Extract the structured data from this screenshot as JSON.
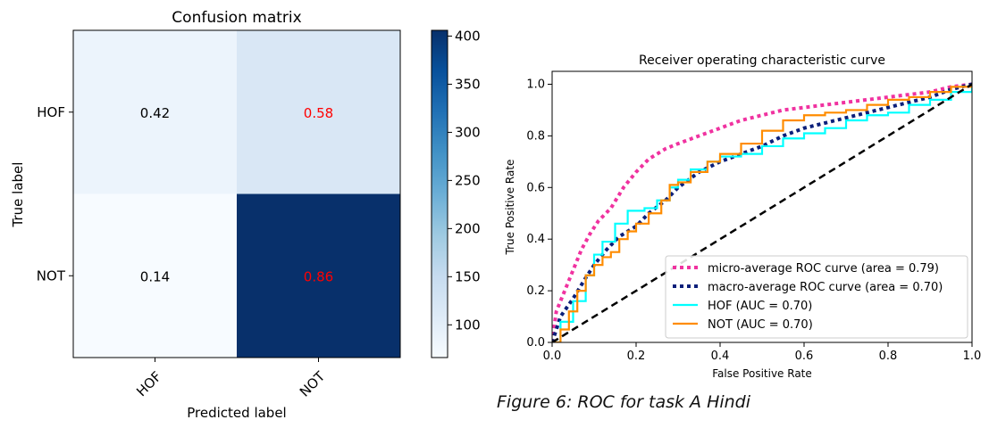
{
  "caption": "Figure 6: ROC for task A Hindi",
  "chart_data": [
    {
      "type": "heatmap",
      "title": "Confusion matrix",
      "xlabel": "Predicted label",
      "ylabel": "True label",
      "x_categories": [
        "HOF",
        "NOT"
      ],
      "y_categories": [
        "HOF",
        "NOT"
      ],
      "cells": [
        {
          "row": 0,
          "col": 0,
          "label": "0.42",
          "count": 84,
          "text_color": "#000000"
        },
        {
          "row": 0,
          "col": 1,
          "label": "0.58",
          "count": 118,
          "text_color": "#ff0000"
        },
        {
          "row": 1,
          "col": 0,
          "label": "0.14",
          "count": 66,
          "text_color": "#000000"
        },
        {
          "row": 1,
          "col": 1,
          "label": "0.86",
          "count": 406,
          "text_color": "#ff0000"
        }
      ],
      "colorbar": {
        "ticks": [
          "100",
          "150",
          "200",
          "250",
          "300",
          "350",
          "400"
        ],
        "tick_values": [
          100,
          150,
          200,
          250,
          300,
          350,
          400
        ],
        "range": [
          66,
          406
        ],
        "colormap": "Blues"
      }
    },
    {
      "type": "line",
      "title": "Receiver operating characteristic curve",
      "xlabel": "False Positive Rate",
      "ylabel": "True Positive Rate",
      "xlim": [
        0.0,
        1.0
      ],
      "ylim": [
        0.0,
        1.05
      ],
      "xticks": [
        "0.0",
        "0.2",
        "0.4",
        "0.6",
        "0.8",
        "1.0"
      ],
      "yticks": [
        "0.0",
        "0.2",
        "0.4",
        "0.6",
        "0.8",
        "1.0"
      ],
      "legend_position": "lower-right",
      "series": [
        {
          "name": "micro-average ROC curve (area = 0.79)",
          "color": "#f032a0",
          "style": "dotted",
          "x": [
            0,
            0.01,
            0.03,
            0.05,
            0.07,
            0.09,
            0.11,
            0.14,
            0.17,
            0.2,
            0.23,
            0.27,
            0.3,
            0.35,
            0.4,
            0.45,
            0.5,
            0.55,
            0.6,
            0.65,
            0.7,
            0.75,
            0.8,
            0.85,
            0.9,
            0.95,
            1.0
          ],
          "y": [
            0,
            0.12,
            0.2,
            0.28,
            0.36,
            0.42,
            0.47,
            0.52,
            0.6,
            0.66,
            0.71,
            0.75,
            0.77,
            0.8,
            0.83,
            0.86,
            0.88,
            0.9,
            0.91,
            0.92,
            0.93,
            0.94,
            0.95,
            0.96,
            0.97,
            0.99,
            1.0
          ]
        },
        {
          "name": "macro-average ROC curve (area = 0.70)",
          "color": "#0b1f7a",
          "style": "dotted",
          "x": [
            0,
            0.02,
            0.05,
            0.08,
            0.1,
            0.13,
            0.16,
            0.2,
            0.23,
            0.27,
            0.3,
            0.35,
            0.4,
            0.45,
            0.5,
            0.55,
            0.6,
            0.65,
            0.7,
            0.75,
            0.8,
            0.85,
            0.9,
            0.95,
            1.0
          ],
          "y": [
            0,
            0.1,
            0.17,
            0.25,
            0.3,
            0.36,
            0.41,
            0.45,
            0.5,
            0.55,
            0.6,
            0.66,
            0.7,
            0.73,
            0.76,
            0.8,
            0.83,
            0.85,
            0.87,
            0.89,
            0.91,
            0.93,
            0.95,
            0.98,
            1.0
          ]
        },
        {
          "name": "HOF (AUC = 0.70)",
          "color": "#00ffff",
          "style": "solid",
          "x": [
            0,
            0.02,
            0.05,
            0.08,
            0.1,
            0.12,
            0.15,
            0.18,
            0.22,
            0.25,
            0.28,
            0.3,
            0.33,
            0.37,
            0.4,
            0.45,
            0.5,
            0.55,
            0.6,
            0.65,
            0.7,
            0.75,
            0.8,
            0.85,
            0.9,
            0.95,
            1.0
          ],
          "y": [
            0,
            0.08,
            0.16,
            0.26,
            0.34,
            0.39,
            0.46,
            0.51,
            0.52,
            0.55,
            0.6,
            0.63,
            0.67,
            0.7,
            0.72,
            0.73,
            0.76,
            0.79,
            0.81,
            0.83,
            0.86,
            0.88,
            0.89,
            0.92,
            0.94,
            0.97,
            1.0
          ]
        },
        {
          "name": "NOT (AUC = 0.70)",
          "color": "#ff8c00",
          "style": "solid",
          "x": [
            0,
            0.02,
            0.04,
            0.06,
            0.08,
            0.1,
            0.12,
            0.14,
            0.16,
            0.18,
            0.2,
            0.23,
            0.26,
            0.28,
            0.3,
            0.33,
            0.37,
            0.4,
            0.45,
            0.5,
            0.55,
            0.6,
            0.65,
            0.7,
            0.75,
            0.8,
            0.85,
            0.9,
            0.95,
            1.0
          ],
          "y": [
            0,
            0.05,
            0.12,
            0.2,
            0.26,
            0.3,
            0.33,
            0.35,
            0.4,
            0.43,
            0.46,
            0.5,
            0.55,
            0.61,
            0.62,
            0.66,
            0.7,
            0.73,
            0.77,
            0.82,
            0.86,
            0.88,
            0.89,
            0.9,
            0.92,
            0.94,
            0.95,
            0.97,
            0.99,
            1.0
          ]
        },
        {
          "name": "",
          "color": "#000000",
          "style": "dashed",
          "x": [
            0,
            1
          ],
          "y": [
            0,
            1
          ]
        }
      ]
    }
  ]
}
